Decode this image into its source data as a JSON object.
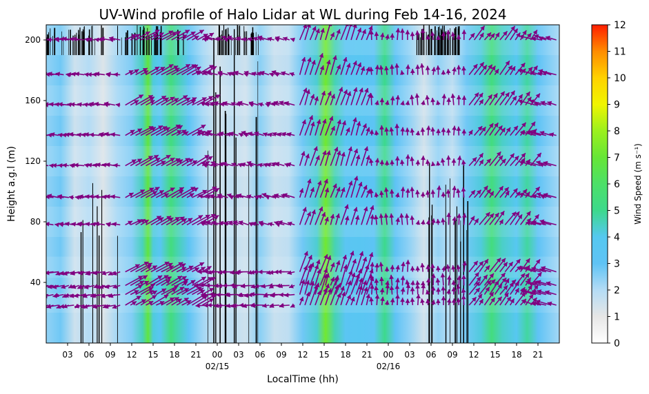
{
  "chart_data": {
    "type": "heatmap",
    "title": "UV-Wind profile of Halo Lidar at WL during Feb 14-16, 2024",
    "xlabel": "LocalTime (hh)",
    "ylabel": "Height a.g.l (m)",
    "colorbar_label": "Wind Speed (m s⁻¹)",
    "x_unit": "hours since 2024-02-14 00:00 local",
    "xlim": [
      0,
      72
    ],
    "ylim": [
      0,
      210
    ],
    "x_ticks": [
      {
        "h": 3,
        "label": "03"
      },
      {
        "h": 6,
        "label": "06"
      },
      {
        "h": 9,
        "label": "09"
      },
      {
        "h": 12,
        "label": "12"
      },
      {
        "h": 15,
        "label": "15"
      },
      {
        "h": 18,
        "label": "18"
      },
      {
        "h": 21,
        "label": "21"
      },
      {
        "h": 24,
        "label": "00"
      },
      {
        "h": 27,
        "label": "03"
      },
      {
        "h": 30,
        "label": "06"
      },
      {
        "h": 33,
        "label": "09"
      },
      {
        "h": 36,
        "label": "12"
      },
      {
        "h": 39,
        "label": "15"
      },
      {
        "h": 42,
        "label": "18"
      },
      {
        "h": 45,
        "label": "21"
      },
      {
        "h": 48,
        "label": "00"
      },
      {
        "h": 51,
        "label": "03"
      },
      {
        "h": 54,
        "label": "06"
      },
      {
        "h": 57,
        "label": "09"
      },
      {
        "h": 60,
        "label": "12"
      },
      {
        "h": 63,
        "label": "15"
      },
      {
        "h": 66,
        "label": "18"
      },
      {
        "h": 69,
        "label": "21"
      }
    ],
    "date_labels": [
      {
        "h": 24,
        "label": "02/15"
      },
      {
        "h": 48,
        "label": "02/16"
      }
    ],
    "y_ticks": [
      40,
      80,
      120,
      160,
      200
    ],
    "colorbar": {
      "range": [
        0,
        12
      ],
      "ticks": [
        0,
        1,
        2,
        3,
        4,
        5,
        6,
        7,
        8,
        9,
        10,
        11,
        12
      ],
      "stops": [
        {
          "v": 0,
          "color": "#ffffff"
        },
        {
          "v": 1,
          "color": "#e6e6e6"
        },
        {
          "v": 2,
          "color": "#b4dcf5"
        },
        {
          "v": 3,
          "color": "#5fc3f5"
        },
        {
          "v": 4,
          "color": "#55c8f0"
        },
        {
          "v": 5,
          "color": "#3dd98c"
        },
        {
          "v": 6,
          "color": "#4ce068"
        },
        {
          "v": 7,
          "color": "#66e636"
        },
        {
          "v": 8,
          "color": "#9bf01e"
        },
        {
          "v": 9,
          "color": "#f0f500"
        },
        {
          "v": 10,
          "color": "#ffd200"
        },
        {
          "v": 11,
          "color": "#ff8c00"
        },
        {
          "v": 12,
          "color": "#ff1e00"
        }
      ]
    },
    "background_profile": [
      {
        "t": 0,
        "ws": 2.4
      },
      {
        "t": 2,
        "ws": 2.8
      },
      {
        "t": 4,
        "ws": 1.5
      },
      {
        "t": 6,
        "ws": 2.0
      },
      {
        "t": 8,
        "ws": 1.2
      },
      {
        "t": 10,
        "ws": 2.2
      },
      {
        "t": 12,
        "ws": 2.6
      },
      {
        "t": 13.5,
        "ws": 4.5
      },
      {
        "t": 14.3,
        "ws": 6.8
      },
      {
        "t": 15,
        "ws": 4.2
      },
      {
        "t": 16,
        "ws": 3.6
      },
      {
        "t": 17.5,
        "ws": 5.4
      },
      {
        "t": 18.5,
        "ws": 4.6
      },
      {
        "t": 20,
        "ws": 3.2
      },
      {
        "t": 22,
        "ws": 2.2
      },
      {
        "t": 24,
        "ws": 1.4
      },
      {
        "t": 26,
        "ws": 1.8
      },
      {
        "t": 28,
        "ws": 1.5
      },
      {
        "t": 30,
        "ws": 2.5
      },
      {
        "t": 32,
        "ws": 1.6
      },
      {
        "t": 34,
        "ws": 1.8
      },
      {
        "t": 36,
        "ws": 2.8
      },
      {
        "t": 38,
        "ws": 4.3
      },
      {
        "t": 39.2,
        "ws": 7.2
      },
      {
        "t": 40.5,
        "ws": 4.6
      },
      {
        "t": 42,
        "ws": 3.4
      },
      {
        "t": 44,
        "ws": 3.6
      },
      {
        "t": 46,
        "ws": 3.2
      },
      {
        "t": 47.5,
        "ws": 5.0
      },
      {
        "t": 49,
        "ws": 3.0
      },
      {
        "t": 51,
        "ws": 2.4
      },
      {
        "t": 53,
        "ws": 1.4
      },
      {
        "t": 55,
        "ws": 2.4
      },
      {
        "t": 57,
        "ws": 1.8
      },
      {
        "t": 59,
        "ws": 2.8
      },
      {
        "t": 61,
        "ws": 4.2
      },
      {
        "t": 62.5,
        "ws": 5.4
      },
      {
        "t": 64,
        "ws": 4.4
      },
      {
        "t": 66,
        "ws": 3.8
      },
      {
        "t": 67.5,
        "ws": 4.8
      },
      {
        "t": 69,
        "ws": 3.0
      },
      {
        "t": 72,
        "ws": 2.2
      }
    ],
    "data_gaps": [
      {
        "t0": 3.0,
        "t1": 10.5,
        "z0": 0,
        "z1": 120,
        "density": 0.14
      },
      {
        "t0": 21.5,
        "t1": 30.5,
        "z0": 0,
        "z1": 210,
        "density": 0.16
      },
      {
        "t0": 24.0,
        "t1": 30.0,
        "z0": 190,
        "z1": 210,
        "density": 0.55
      },
      {
        "t0": 51.0,
        "t1": 59.5,
        "z0": 0,
        "z1": 120,
        "density": 0.14
      },
      {
        "t0": 52.0,
        "t1": 58.0,
        "z0": 190,
        "z1": 210,
        "density": 0.6
      },
      {
        "t0": 0.0,
        "t1": 8.0,
        "z0": 190,
        "z1": 210,
        "density": 0.3
      },
      {
        "t0": 10.0,
        "t1": 20.0,
        "z0": 190,
        "z1": 210,
        "density": 0.25
      }
    ],
    "vector_levels_m": [
      25,
      32,
      38,
      47,
      78,
      96,
      117,
      137,
      157,
      177,
      200
    ],
    "wind_regimes": [
      {
        "t0": 0,
        "t1": 11,
        "u": -2.0,
        "v": 0.3
      },
      {
        "t0": 11,
        "t1": 22,
        "u": 3.2,
        "v": 1.8
      },
      {
        "t0": 22,
        "t1": 35,
        "u": -2.0,
        "v": 0.6
      },
      {
        "t0": 35,
        "t1": 45,
        "u": 1.2,
        "v": 3.6
      },
      {
        "t0": 45,
        "t1": 59,
        "u": 0.0,
        "v": 2.0
      },
      {
        "t0": 59,
        "t1": 68,
        "u": 1.8,
        "v": 2.4
      },
      {
        "t0": 68,
        "t1": 72,
        "u": -3.0,
        "v": 0.8
      }
    ]
  }
}
